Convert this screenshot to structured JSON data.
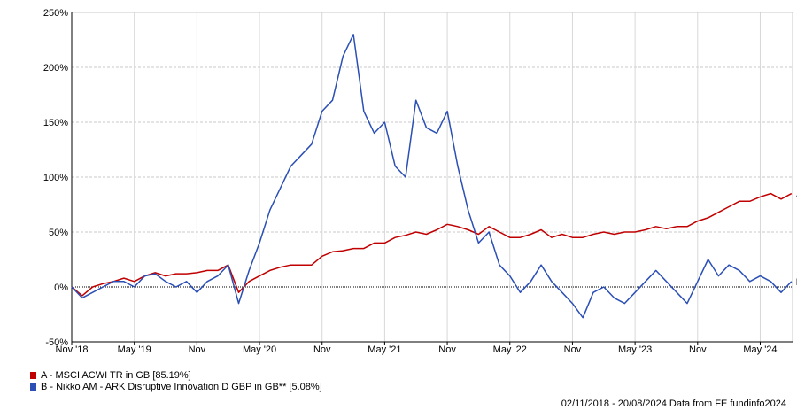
{
  "chart_data": {
    "type": "line",
    "title": "",
    "xlabel": "",
    "ylabel": "",
    "ylim": [
      -50,
      250
    ],
    "yticks": [
      "250%",
      "200%",
      "150%",
      "100%",
      "50%",
      "0%",
      "-50%"
    ],
    "ytick_values": [
      250,
      200,
      150,
      100,
      50,
      0,
      -50
    ],
    "xticks": [
      "Nov '18",
      "May '19",
      "Nov",
      "May '20",
      "Nov",
      "May '21",
      "Nov",
      "May '22",
      "Nov",
      "May '23",
      "Nov",
      "May '24"
    ],
    "x_start": "Nov 2018",
    "x_unit": "months",
    "grid": true,
    "legend_position": "bottom-left",
    "series": [
      {
        "name": "A - MSCI ACWI TR in GB [85.19%]",
        "end_label": "A",
        "color": "#c00000",
        "values": [
          0,
          -8,
          0,
          3,
          5,
          8,
          5,
          10,
          13,
          10,
          12,
          12,
          13,
          15,
          15,
          20,
          -5,
          5,
          10,
          15,
          18,
          20,
          20,
          20,
          28,
          32,
          33,
          35,
          35,
          40,
          40,
          45,
          47,
          50,
          48,
          52,
          57,
          55,
          52,
          48,
          55,
          50,
          45,
          45,
          48,
          52,
          45,
          48,
          45,
          45,
          48,
          50,
          48,
          50,
          50,
          52,
          55,
          53,
          55,
          55,
          60,
          63,
          68,
          73,
          78,
          78,
          82,
          85,
          80,
          85
        ]
      },
      {
        "name": "B - Nikko AM - ARK Disruptive Innovation D GBP in GB** [5.08%]",
        "end_label": "B",
        "color": "#2b4fb5",
        "values": [
          0,
          -10,
          -5,
          0,
          5,
          5,
          0,
          10,
          12,
          5,
          0,
          5,
          -5,
          5,
          10,
          20,
          -15,
          15,
          40,
          70,
          90,
          110,
          120,
          130,
          160,
          170,
          210,
          230,
          160,
          140,
          150,
          110,
          100,
          170,
          145,
          140,
          160,
          110,
          70,
          40,
          50,
          20,
          10,
          -5,
          5,
          20,
          5,
          -5,
          -15,
          -28,
          -5,
          0,
          -10,
          -15,
          -5,
          5,
          15,
          5,
          -5,
          -15,
          5,
          25,
          10,
          20,
          15,
          5,
          10,
          5,
          -5,
          5
        ]
      }
    ]
  },
  "footer": "02/11/2018 - 20/08/2024 Data from FE fundinfo2024"
}
